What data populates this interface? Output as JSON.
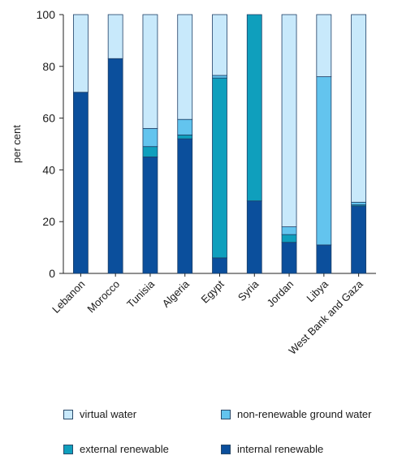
{
  "chart_data": {
    "type": "bar",
    "stacked": true,
    "categories": [
      "Lebanon",
      "Morocco",
      "Tunisia",
      "Algeria",
      "Egypt",
      "Syria",
      "Jordan",
      "Libya",
      "West Bank and Gaza"
    ],
    "series": [
      {
        "name": "internal renewable",
        "color": "#0b4f9c",
        "values": [
          70,
          83,
          45,
          52,
          6,
          28,
          12,
          11,
          26
        ]
      },
      {
        "name": "external renewable",
        "color": "#0f9fbd",
        "values": [
          0,
          0,
          4,
          1.5,
          69.5,
          72,
          3,
          0,
          0.5
        ]
      },
      {
        "name": "non-renewable ground water",
        "color": "#63c4ee",
        "values": [
          0,
          0,
          7,
          6,
          1,
          0,
          3,
          65,
          1
        ]
      },
      {
        "name": "virtual water",
        "color": "#c8e9fb",
        "values": [
          30,
          17,
          44,
          40.5,
          23.5,
          0,
          82,
          24,
          72.5
        ]
      }
    ],
    "ylabel": "per cent",
    "ylim": [
      0,
      100
    ],
    "yticks": [
      0,
      20,
      40,
      60,
      80,
      100
    ],
    "grid": false,
    "legend_position": "bottom"
  },
  "legend": {
    "items": [
      {
        "label": "virtual water",
        "color": "#c8e9fb"
      },
      {
        "label": "non-renewable ground water",
        "color": "#63c4ee"
      },
      {
        "label": "external renewable",
        "color": "#0f9fbd"
      },
      {
        "label": "internal renewable",
        "color": "#0b4f9c"
      }
    ]
  }
}
